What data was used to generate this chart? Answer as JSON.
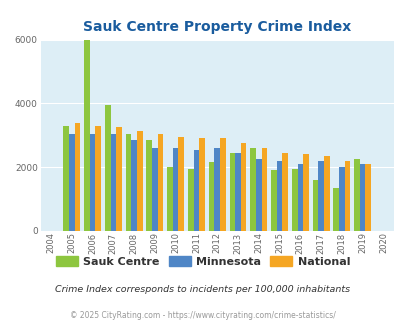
{
  "title": "Sauk Centre Property Crime Index",
  "years": [
    2004,
    2005,
    2006,
    2007,
    2008,
    2009,
    2010,
    2011,
    2012,
    2013,
    2014,
    2015,
    2016,
    2017,
    2018,
    2019,
    2020
  ],
  "sauk_centre": [
    null,
    3300,
    6000,
    3950,
    3050,
    2850,
    2000,
    1950,
    2150,
    2450,
    2600,
    1900,
    1950,
    1600,
    1350,
    2250,
    null
  ],
  "minnesota": [
    null,
    3050,
    3050,
    3050,
    2850,
    2600,
    2600,
    2550,
    2600,
    2450,
    2250,
    2200,
    2100,
    2200,
    2000,
    2100,
    null
  ],
  "national": [
    null,
    3400,
    3300,
    3250,
    3150,
    3050,
    2950,
    2900,
    2900,
    2750,
    2600,
    2450,
    2400,
    2350,
    2200,
    2100,
    null
  ],
  "sauk_colour": "#8dc63f",
  "minnesota_colour": "#4f86c6",
  "national_colour": "#f5a623",
  "bg_color": "#ddeef6",
  "ylim": [
    0,
    6000
  ],
  "yticks": [
    0,
    2000,
    4000,
    6000
  ],
  "subtitle": "Crime Index corresponds to incidents per 100,000 inhabitants",
  "footer": "© 2025 CityRating.com - https://www.cityrating.com/crime-statistics/",
  "title_color": "#1a5c9e",
  "subtitle_color": "#333333",
  "footer_color": "#999999",
  "footer_link_color": "#4488cc"
}
